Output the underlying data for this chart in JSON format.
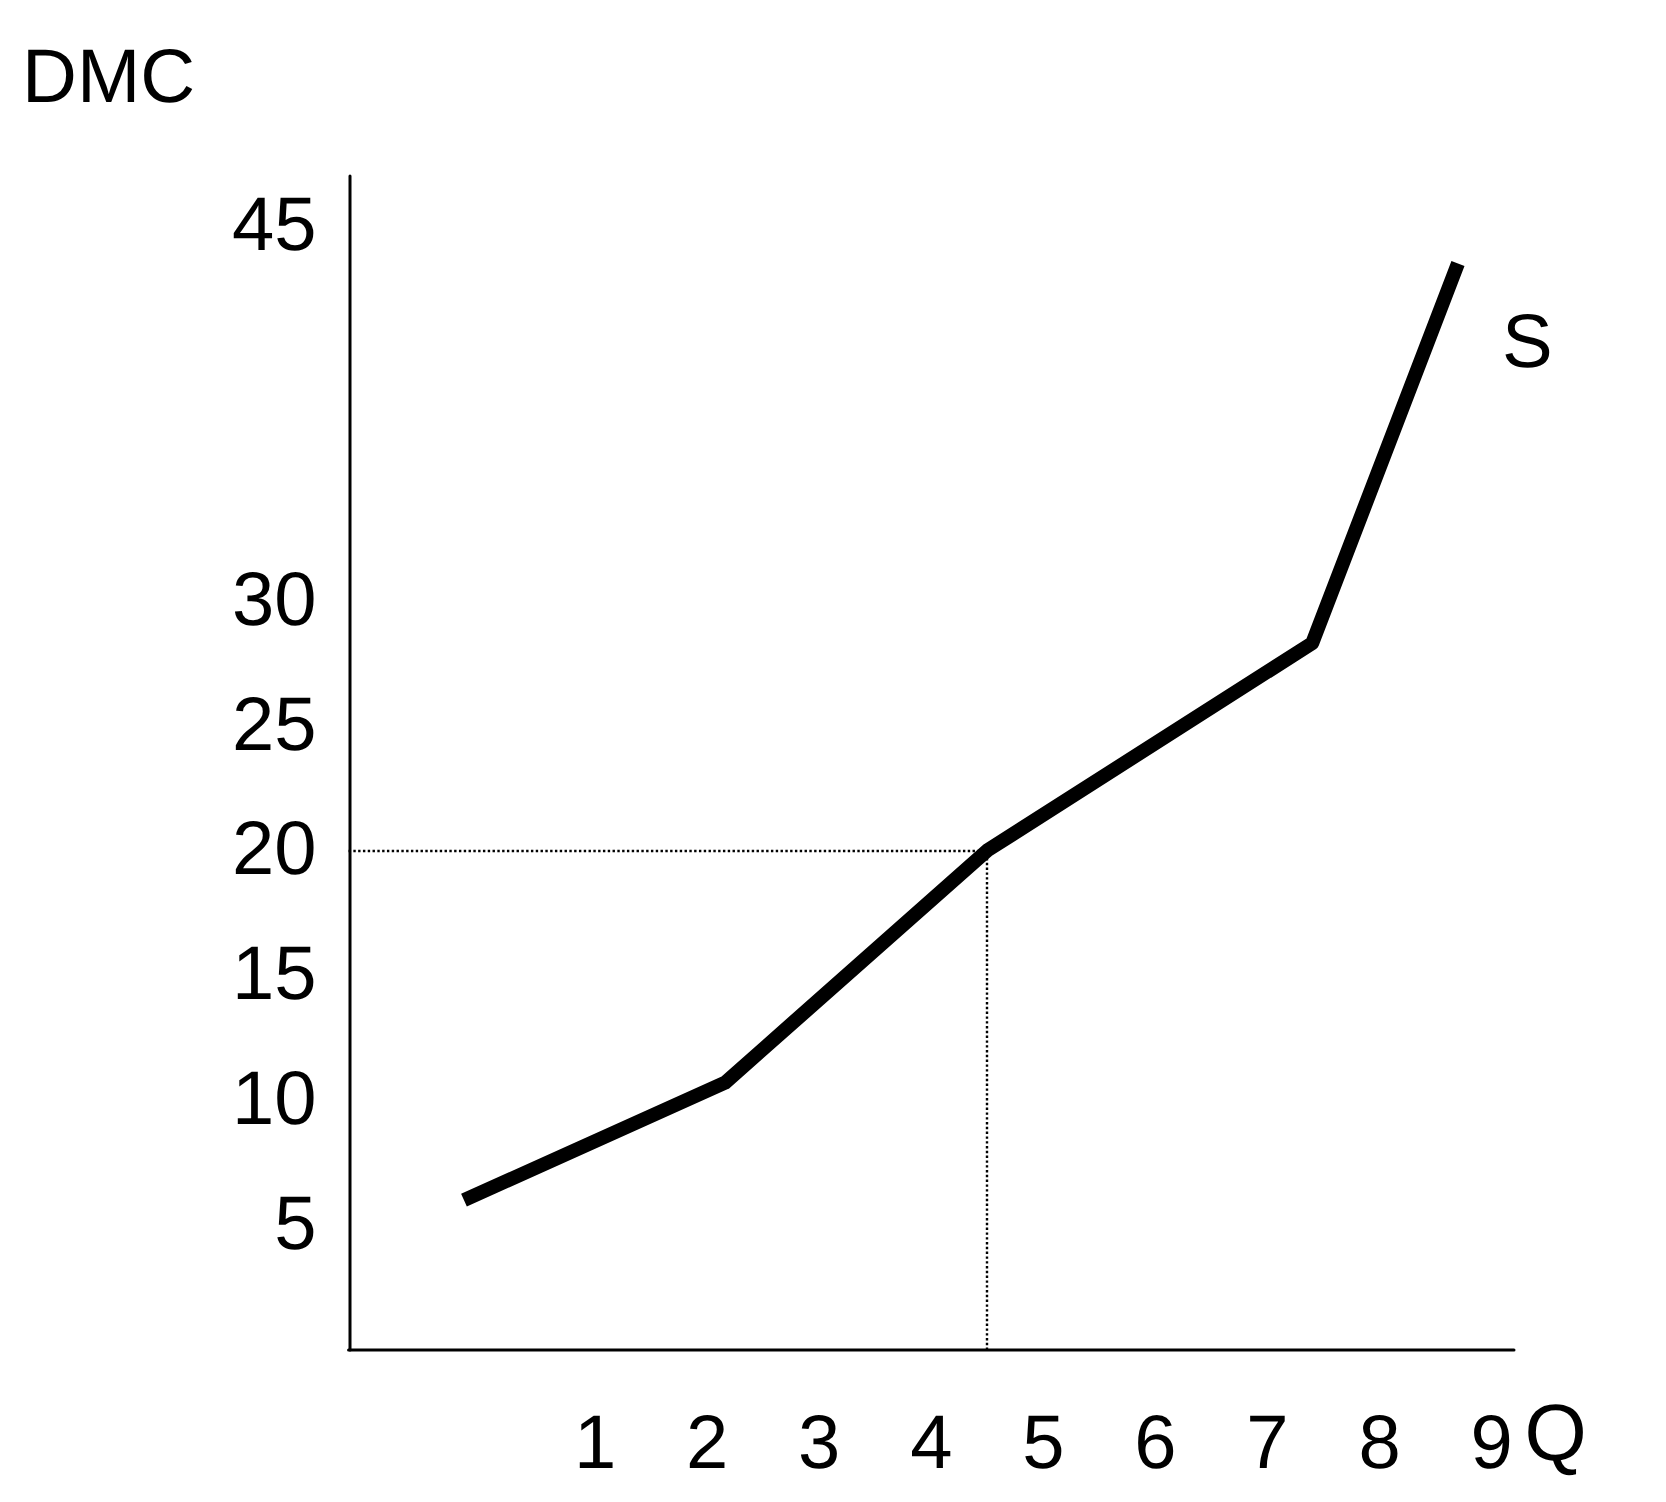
{
  "chart_data": {
    "type": "line",
    "xlabel": "Q",
    "ylabel": "DMC",
    "x": [
      -0.17,
      2.16,
      4.5,
      7.4,
      8.7
    ],
    "series": [
      {
        "name": "S",
        "color": "#000000",
        "values": [
          6,
          10.7,
          20,
          28.3,
          43.5
        ]
      }
    ],
    "xlim": [
      -1.2,
      9.2
    ],
    "ylim": [
      0,
      47
    ],
    "xticks": [
      1,
      2,
      3,
      4,
      5,
      6,
      7,
      8,
      9
    ],
    "yticks": [
      5,
      10,
      15,
      20,
      25,
      30,
      45
    ],
    "ref_lines": [
      {
        "axis": "y",
        "value": 20,
        "color": "#000000",
        "line_style": "dotted"
      },
      {
        "axis": "x",
        "value": 4.5,
        "color": "#000000",
        "line_style": "dotted"
      }
    ],
    "grid": false,
    "legend": false,
    "marker": "none",
    "line_style": "solid"
  }
}
